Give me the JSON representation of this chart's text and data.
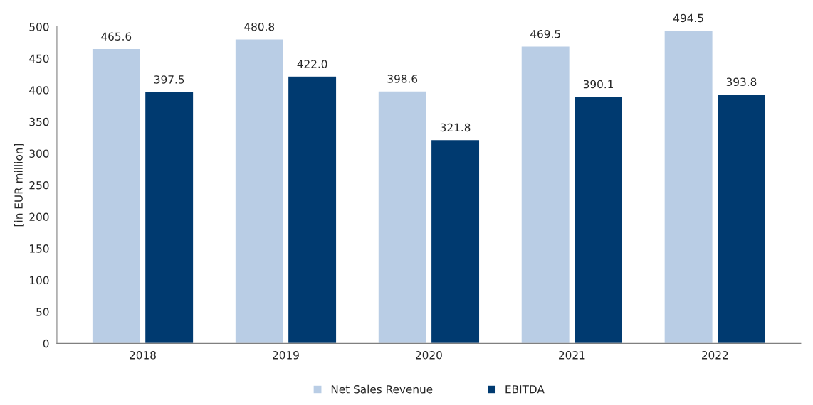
{
  "chart_data": {
    "type": "bar",
    "ylabel": "[in EUR million]",
    "categories": [
      "2018",
      "2019",
      "2020",
      "2021",
      "2022"
    ],
    "series": [
      {
        "name": "Net Sales Revenue",
        "color": "#b9cde5",
        "values": [
          465.6,
          480.8,
          398.6,
          469.5,
          494.5
        ],
        "value_labels": [
          "465.6",
          "480.8",
          "398.6",
          "469.5",
          "494.5"
        ]
      },
      {
        "name": "EBITDA",
        "color": "#003a70",
        "values": [
          397.5,
          422.0,
          321.8,
          390.1,
          393.8
        ],
        "value_labels": [
          "397.5",
          "422.0",
          "321.8",
          "390.1",
          "393.8"
        ]
      }
    ],
    "ylim": [
      0,
      500
    ],
    "yticks": [
      0,
      50,
      100,
      150,
      200,
      250,
      300,
      350,
      400,
      450,
      500
    ],
    "grid": false,
    "legend": "bottom"
  }
}
